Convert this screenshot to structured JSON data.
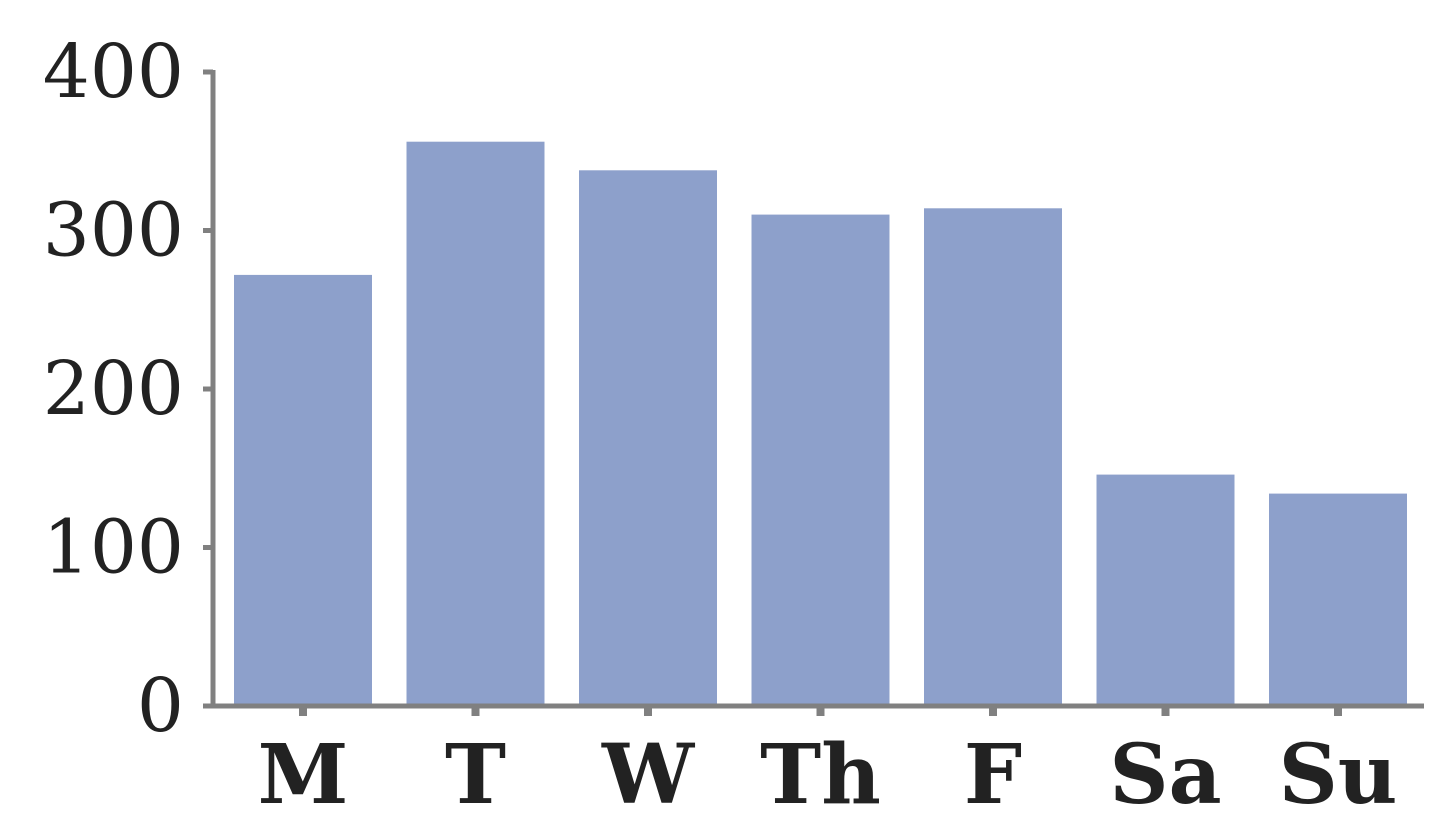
{
  "chart_data": {
    "type": "bar",
    "categories": [
      "M",
      "T",
      "W",
      "Th",
      "F",
      "Sa",
      "Su"
    ],
    "values": [
      272,
      356,
      338,
      310,
      314,
      146,
      134
    ],
    "ylim": [
      0,
      400
    ],
    "yticks": [
      0,
      100,
      200,
      300,
      400
    ],
    "ytick_labels": [
      "0",
      "100",
      "200",
      "300",
      "400"
    ],
    "title": "",
    "xlabel": "",
    "ylabel": "",
    "grid": false,
    "legend": "none",
    "colors": {
      "bar": "#8da0cb",
      "axis": "#808080",
      "text": "#222222",
      "background": "#ffffff"
    }
  }
}
